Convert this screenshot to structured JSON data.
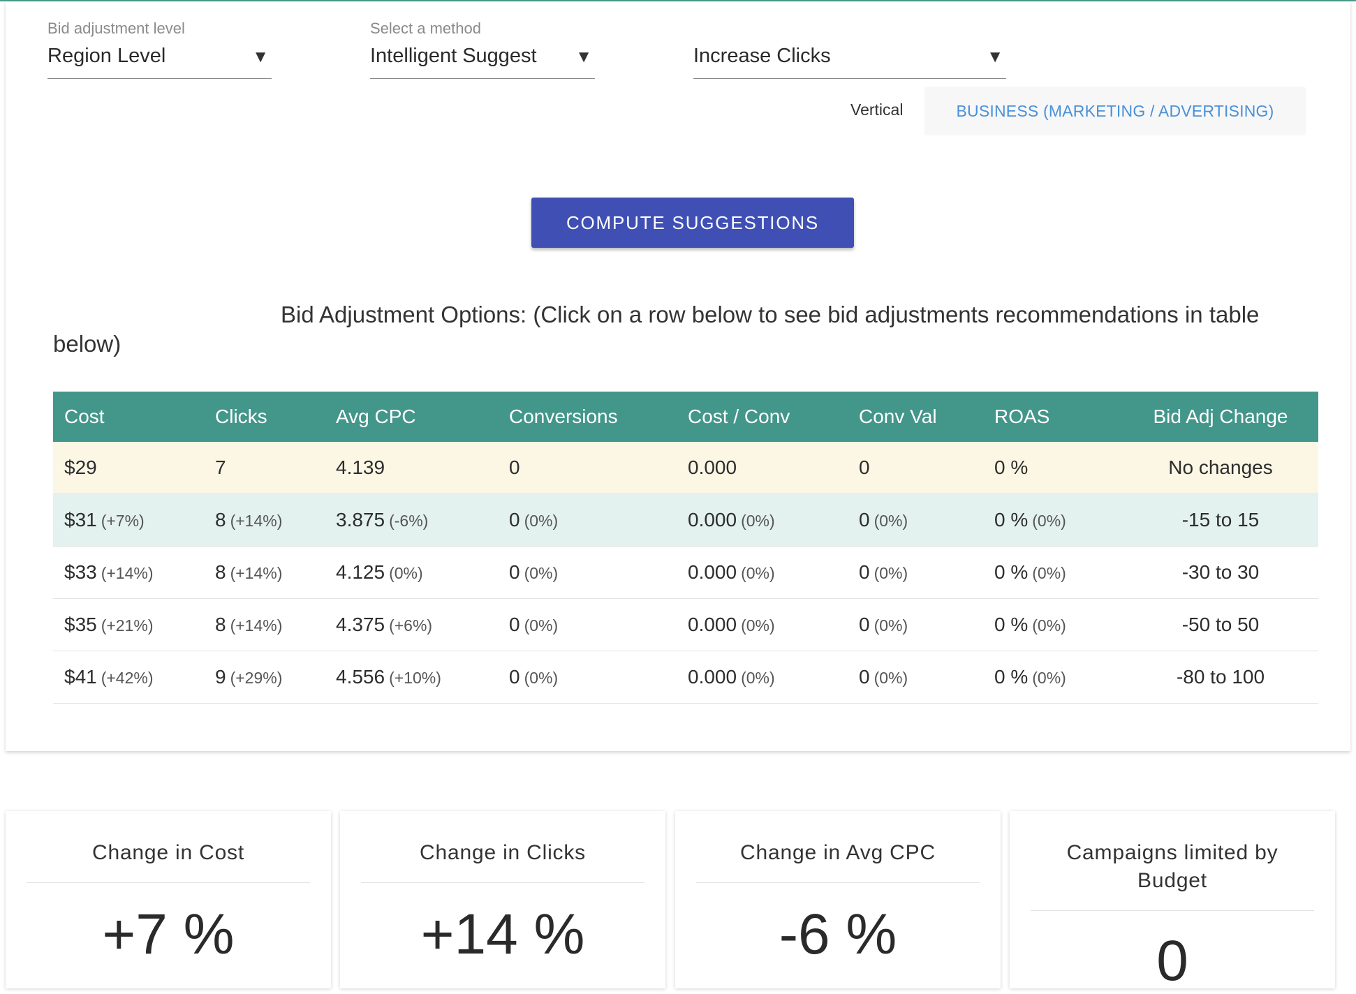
{
  "controls": {
    "bid_level": {
      "label": "Bid adjustment level",
      "value": "Region Level"
    },
    "method": {
      "label": "Select a method",
      "value": "Intelligent Suggest"
    },
    "goal": {
      "label": "",
      "value": "Increase Clicks"
    },
    "dropdown_arrow": "▼",
    "vertical_label": "Vertical",
    "vertical_value": "BUSINESS (MARKETING / ADVERTISING)",
    "compute_button": "COMPUTE SUGGESTIONS"
  },
  "options": {
    "title": "Bid Adjustment Options: (Click on a row below to see bid adjustments recommendations in table below)",
    "columns": [
      "Cost",
      "Clicks",
      "Avg CPC",
      "Conversions",
      "Cost / Conv",
      "Conv Val",
      "ROAS",
      "Bid Adj Change"
    ],
    "rows": [
      {
        "cost": "$29",
        "cost_pct": "",
        "clicks": "7",
        "clicks_pct": "",
        "cpc": "4.139",
        "cpc_pct": "",
        "conv": "0",
        "conv_pct": "",
        "cost_conv": "0.000",
        "cost_conv_pct": "",
        "conv_val": "0",
        "conv_val_pct": "",
        "roas": "0 %",
        "roas_pct": "",
        "bid_adj": "No changes"
      },
      {
        "cost": "$31",
        "cost_pct": "(+7%)",
        "clicks": "8",
        "clicks_pct": "(+14%)",
        "cpc": "3.875",
        "cpc_pct": "(-6%)",
        "conv": "0",
        "conv_pct": "(0%)",
        "cost_conv": "0.000",
        "cost_conv_pct": "(0%)",
        "conv_val": "0",
        "conv_val_pct": "(0%)",
        "roas": "0 %",
        "roas_pct": "(0%)",
        "bid_adj": "-15 to 15"
      },
      {
        "cost": "$33",
        "cost_pct": "(+14%)",
        "clicks": "8",
        "clicks_pct": "(+14%)",
        "cpc": "4.125",
        "cpc_pct": "(0%)",
        "conv": "0",
        "conv_pct": "(0%)",
        "cost_conv": "0.000",
        "cost_conv_pct": "(0%)",
        "conv_val": "0",
        "conv_val_pct": "(0%)",
        "roas": "0 %",
        "roas_pct": "(0%)",
        "bid_adj": "-30 to 30"
      },
      {
        "cost": "$35",
        "cost_pct": "(+21%)",
        "clicks": "8",
        "clicks_pct": "(+14%)",
        "cpc": "4.375",
        "cpc_pct": "(+6%)",
        "conv": "0",
        "conv_pct": "(0%)",
        "cost_conv": "0.000",
        "cost_conv_pct": "(0%)",
        "conv_val": "0",
        "conv_val_pct": "(0%)",
        "roas": "0 %",
        "roas_pct": "(0%)",
        "bid_adj": "-50 to 50"
      },
      {
        "cost": "$41",
        "cost_pct": "(+42%)",
        "clicks": "9",
        "clicks_pct": "(+29%)",
        "cpc": "4.556",
        "cpc_pct": "(+10%)",
        "conv": "0",
        "conv_pct": "(0%)",
        "cost_conv": "0.000",
        "cost_conv_pct": "(0%)",
        "conv_val": "0",
        "conv_val_pct": "(0%)",
        "roas": "0 %",
        "roas_pct": "(0%)",
        "bid_adj": "-80 to 100"
      }
    ]
  },
  "stats": [
    {
      "title": "Change in Cost",
      "value": "+7 %"
    },
    {
      "title": "Change in Clicks",
      "value": "+14 %"
    },
    {
      "title": "Change in Avg CPC",
      "value": "-6 %"
    },
    {
      "title": "Campaigns limited by Budget",
      "value": "0"
    }
  ],
  "colors": {
    "table_header": "#43968a",
    "current_row": "#fbf7e4",
    "selected_row": "#e3f1ef",
    "button": "#3f4fb4",
    "link_blue": "#4a90d9"
  }
}
